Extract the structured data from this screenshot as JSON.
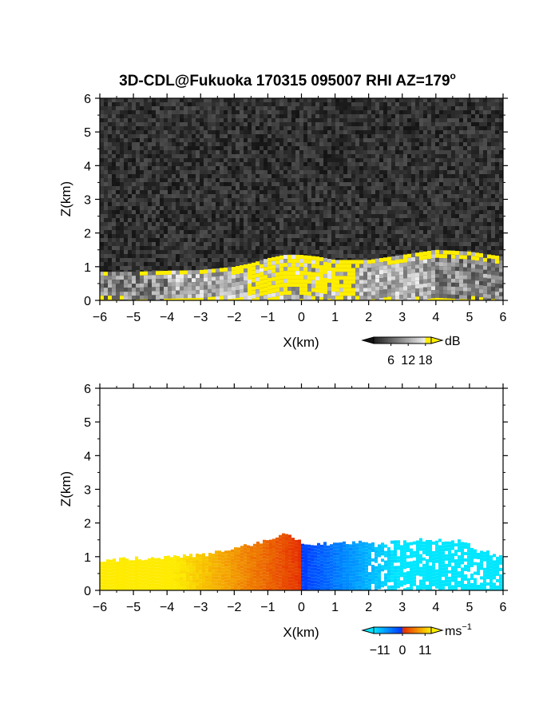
{
  "figure": {
    "title": "3D-CDL@Fukuoka 170315 095007 RHI AZ=179",
    "title_superscript": "o"
  },
  "chart_data": [
    {
      "type": "heatmap",
      "name": "backscatter",
      "xlabel": "X(km)",
      "ylabel": "Z(km)",
      "xlim": [
        -6,
        6
      ],
      "ylim": [
        0,
        6
      ],
      "xticks": [
        "−6",
        "−5",
        "−4",
        "−3",
        "−2",
        "−1",
        "0",
        "1",
        "2",
        "3",
        "4",
        "5",
        "6"
      ],
      "yticks": [
        "0",
        "1",
        "2",
        "3",
        "4",
        "5",
        "6"
      ],
      "colorbar": {
        "label": "dB",
        "ticks": [
          "6",
          "12",
          "18"
        ],
        "tick_values": [
          6,
          12,
          18
        ],
        "range": [
          0,
          20
        ]
      },
      "colors": {
        "background_noise": "#2a2a2a",
        "saturated": "#ffee00",
        "echo_low": "#6e6e6e",
        "echo_high": "#f0f0f0"
      },
      "echo_top_profile_km": {
        "x": [
          -6,
          -5,
          -4,
          -3,
          -2,
          -1.5,
          -1,
          -0.5,
          0,
          0.5,
          1,
          2,
          3,
          4,
          5,
          6
        ],
        "z": [
          0.85,
          0.85,
          0.88,
          0.9,
          1.0,
          1.1,
          1.25,
          1.35,
          1.35,
          1.3,
          1.2,
          1.2,
          1.35,
          1.5,
          1.45,
          1.3
        ]
      }
    },
    {
      "type": "heatmap",
      "name": "radial_velocity",
      "xlabel": "X(km)",
      "ylabel": "Z(km)",
      "xlim": [
        -6,
        6
      ],
      "ylim": [
        0,
        6
      ],
      "xticks": [
        "−6",
        "−5",
        "−4",
        "−3",
        "−2",
        "−1",
        "0",
        "1",
        "2",
        "3",
        "4",
        "5",
        "6"
      ],
      "yticks": [
        "0",
        "1",
        "2",
        "3",
        "4",
        "5",
        "6"
      ],
      "colorbar": {
        "label": "ms",
        "label_superscript": "−1",
        "ticks": [
          "−11",
          "0",
          "11"
        ],
        "tick_values": [
          -11,
          0,
          11
        ],
        "range": [
          -14,
          14
        ]
      },
      "colors": {
        "approaching_far": "#00e5ff",
        "approaching_near": "#0033ff",
        "receding_near": "#e02000",
        "receding_far": "#ffee00"
      },
      "echo_top_profile_km": {
        "x": [
          -6,
          -5,
          -4,
          -3,
          -2,
          -1.5,
          -1,
          -0.5,
          0,
          0.5,
          1,
          2,
          3,
          4,
          4.8,
          5.2,
          6
        ],
        "z": [
          0.9,
          0.95,
          1.0,
          1.05,
          1.2,
          1.35,
          1.5,
          1.65,
          1.45,
          1.4,
          1.4,
          1.4,
          1.45,
          1.5,
          1.45,
          1.2,
          1.0
        ]
      }
    }
  ]
}
